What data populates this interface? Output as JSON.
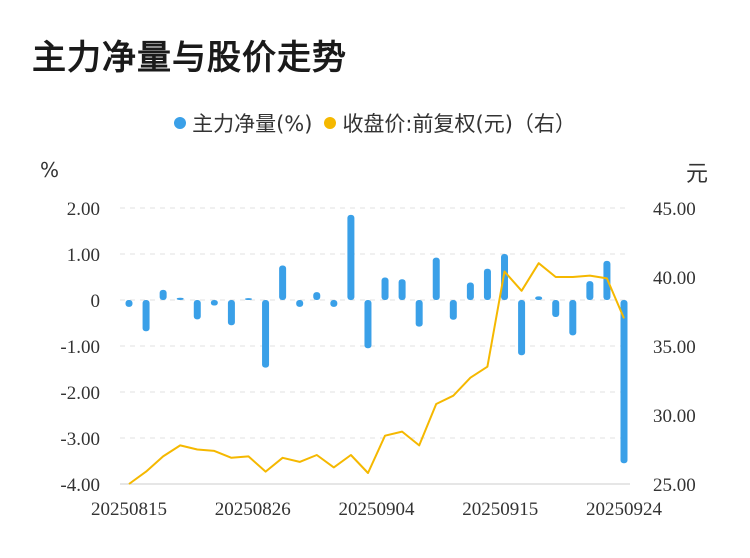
{
  "title": "主力净量与股价走势",
  "legend": {
    "series1": "主力净量(%)",
    "series2": "收盘价:前复权(元)（右）"
  },
  "units": {
    "left": "%",
    "right": "元"
  },
  "colors": {
    "bar": "#3aa0e8",
    "line": "#f5b800",
    "grid": "#e0e0e0"
  },
  "chart_data": {
    "type": "bar+line",
    "x_ticks": [
      "20250815",
      "20250826",
      "20250904",
      "20250915",
      "20250924"
    ],
    "left_axis": {
      "ticks": [
        "2.00",
        "1.00",
        "0",
        "-1.00",
        "-2.00",
        "-3.00",
        "-4.00"
      ],
      "ylim": [
        -4,
        2
      ]
    },
    "right_axis": {
      "ticks": [
        "45.00",
        "40.00",
        "35.00",
        "30.00",
        "25.00"
      ],
      "ylim": [
        25,
        45
      ]
    },
    "series": [
      {
        "name": "主力净量(%)",
        "type": "bar",
        "values": [
          -0.15,
          -0.68,
          0.22,
          0.05,
          -0.42,
          -0.12,
          -0.55,
          0.04,
          -1.47,
          0.75,
          -0.15,
          0.17,
          -0.15,
          1.85,
          -1.05,
          0.49,
          0.45,
          -0.58,
          0.92,
          -0.43,
          0.38,
          0.68,
          1.0,
          -1.2,
          0.08,
          -0.37,
          -0.77,
          0.41,
          0.85,
          -3.55
        ]
      },
      {
        "name": "收盘价:前复权(元)（右）",
        "type": "line",
        "values": [
          25.0,
          25.9,
          27.0,
          27.8,
          27.5,
          27.4,
          26.9,
          27.0,
          25.9,
          26.9,
          26.6,
          27.1,
          26.2,
          27.1,
          25.8,
          28.5,
          28.8,
          27.8,
          30.8,
          31.4,
          32.7,
          33.5,
          40.4,
          39.0,
          41.0,
          40.0,
          40.0,
          40.1,
          39.9,
          37.0
        ]
      }
    ]
  }
}
